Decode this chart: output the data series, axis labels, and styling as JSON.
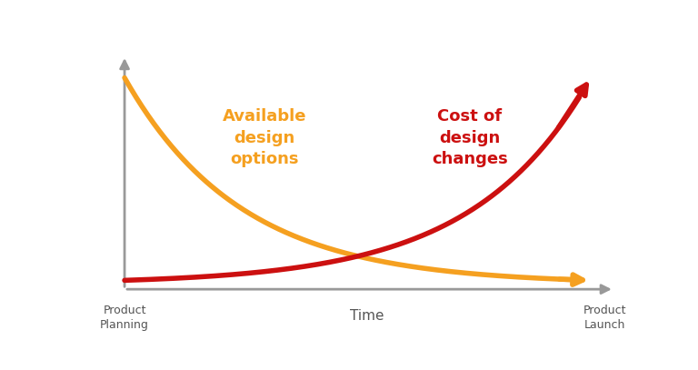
{
  "background_color": "#ffffff",
  "axis_color": "#999999",
  "orange_color": "#F5A020",
  "red_color": "#CC1010",
  "label_available": "Available\ndesign\noptions",
  "label_cost": "Cost of\ndesign\nchanges",
  "xlabel": "Time",
  "x_start_label": "Product\nPlanning",
  "x_end_label": "Product\nLaunch",
  "label_available_color": "#F5A020",
  "label_cost_color": "#CC1010",
  "line_width": 4.0,
  "xlabel_fontsize": 11,
  "label_fontsize": 13,
  "tick_label_fontsize": 9,
  "axis_label_color": "#555555"
}
